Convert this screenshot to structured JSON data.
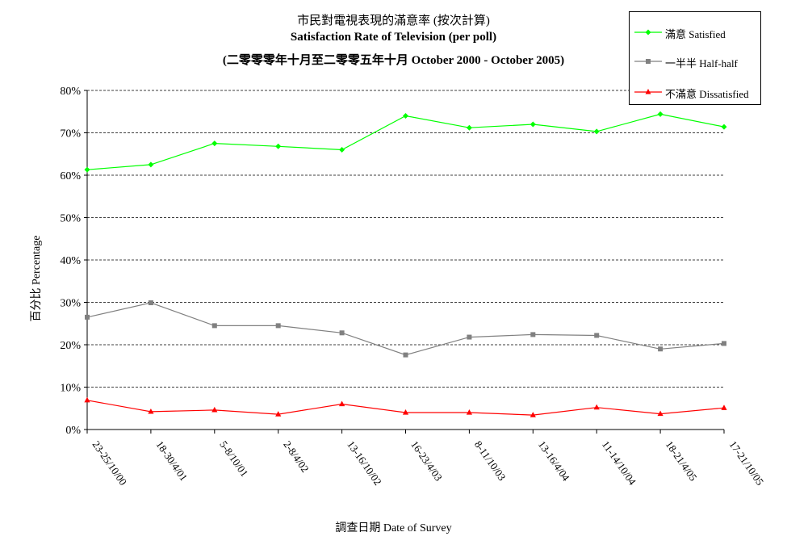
{
  "chart_data": {
    "type": "line",
    "title": "市民對電視表現的滿意率 (按次計算)",
    "subtitle": "Satisfaction Rate of Television (per poll)",
    "subtitle2": "(二零零零年十月至二零零五年十月 October 2000 - October 2005)",
    "xlabel": "調查日期 Date of Survey",
    "ylabel": "百分比 Percentage",
    "ylim": [
      0,
      80
    ],
    "yticks": [
      "0%",
      "10%",
      "20%",
      "30%",
      "40%",
      "50%",
      "60%",
      "70%",
      "80%"
    ],
    "grid": true,
    "legend_position": "top-right",
    "categories": [
      "23-25/10/00",
      "18-30/4/01",
      "5-8/10/01",
      "2-8/4/02",
      "13-16/10/02",
      "16-23/4/03",
      "8-11/10/03",
      "13-16/4/04",
      "11-14/10/04",
      "18-21/4/05",
      "17-21/10/05"
    ],
    "series": [
      {
        "name": "滿意 Satisfied",
        "color": "#00ff00",
        "marker": "diamond",
        "values": [
          61.3,
          62.5,
          67.5,
          66.8,
          66.0,
          74.0,
          71.2,
          72.0,
          70.3,
          74.4,
          71.4
        ]
      },
      {
        "name": "一半半 Half-half",
        "color": "#808080",
        "marker": "square",
        "values": [
          26.5,
          29.9,
          24.5,
          24.5,
          22.8,
          17.6,
          21.8,
          22.4,
          22.2,
          19.0,
          20.3
        ]
      },
      {
        "name": "不滿意 Dissatisfied",
        "color": "#ff0000",
        "marker": "triangle",
        "values": [
          6.9,
          4.2,
          4.6,
          3.6,
          6.0,
          4.0,
          4.0,
          3.4,
          5.2,
          3.7,
          5.1
        ]
      }
    ]
  }
}
